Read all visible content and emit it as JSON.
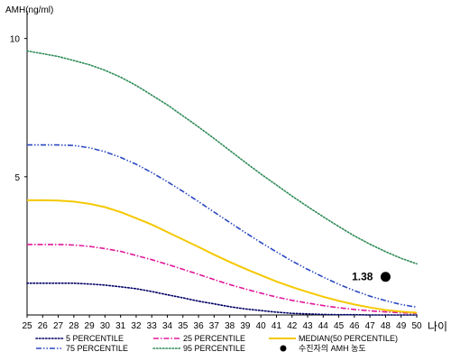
{
  "chart_data": {
    "type": "line",
    "ylabel": "AMH(ng/ml)",
    "xlabel": "나이",
    "xlim": [
      25,
      50
    ],
    "ylim": [
      0,
      11
    ],
    "x_ticks": [
      25,
      26,
      27,
      28,
      29,
      30,
      31,
      32,
      33,
      34,
      35,
      36,
      37,
      38,
      39,
      40,
      41,
      42,
      43,
      44,
      45,
      46,
      47,
      48,
      49,
      50
    ],
    "y_ticks": [
      5,
      10
    ],
    "grid": false,
    "x": [
      25,
      26,
      27,
      28,
      29,
      30,
      31,
      32,
      33,
      34,
      35,
      36,
      37,
      38,
      39,
      40,
      41,
      42,
      43,
      44,
      45,
      46,
      47,
      48,
      49,
      50
    ],
    "series": [
      {
        "name": "5 PERCENTILE",
        "color": "#000066",
        "dash": "dotted",
        "values": [
          1.15,
          1.15,
          1.15,
          1.15,
          1.12,
          1.08,
          1.02,
          0.95,
          0.85,
          0.73,
          0.62,
          0.5,
          0.4,
          0.3,
          0.22,
          0.16,
          0.1,
          0.06,
          0.04,
          0.02,
          0.01,
          0.01,
          0.0,
          0.0,
          0.0,
          0.0
        ]
      },
      {
        "name": "25 PERCENTILE",
        "color": "#e0189a",
        "dash": "dashdot",
        "values": [
          2.55,
          2.55,
          2.55,
          2.53,
          2.48,
          2.4,
          2.3,
          2.15,
          2.0,
          1.83,
          1.65,
          1.47,
          1.28,
          1.1,
          0.94,
          0.79,
          0.65,
          0.53,
          0.43,
          0.34,
          0.26,
          0.2,
          0.15,
          0.11,
          0.08,
          0.06
        ]
      },
      {
        "name": "MEDIAN(50 PERCENTILE)",
        "color": "#f5c800",
        "dash": "solid",
        "values": [
          4.15,
          4.15,
          4.14,
          4.1,
          4.02,
          3.9,
          3.72,
          3.5,
          3.27,
          3.0,
          2.73,
          2.46,
          2.18,
          1.92,
          1.67,
          1.44,
          1.21,
          1.01,
          0.83,
          0.66,
          0.51,
          0.38,
          0.27,
          0.18,
          0.12,
          0.08
        ]
      },
      {
        "name": "75 PERCENTILE",
        "color": "#2b49c2",
        "dash": "dashdotdot",
        "values": [
          6.15,
          6.15,
          6.15,
          6.13,
          6.05,
          5.9,
          5.7,
          5.45,
          5.15,
          4.82,
          4.47,
          4.1,
          3.72,
          3.35,
          2.98,
          2.62,
          2.28,
          1.95,
          1.65,
          1.37,
          1.11,
          0.88,
          0.68,
          0.52,
          0.38,
          0.28
        ]
      },
      {
        "name": "95 PERCENTILE",
        "color": "#2e8b57",
        "dash": "dotted",
        "values": [
          9.55,
          9.45,
          9.35,
          9.2,
          9.05,
          8.85,
          8.6,
          8.3,
          7.95,
          7.6,
          7.2,
          6.8,
          6.38,
          5.95,
          5.52,
          5.1,
          4.7,
          4.3,
          3.92,
          3.55,
          3.2,
          2.86,
          2.56,
          2.29,
          2.05,
          1.85
        ]
      }
    ],
    "marker": {
      "name": "수진자의 AMH 농도",
      "x": 48,
      "y": 1.38,
      "label": "1.38",
      "color": "#000000"
    },
    "legend_position": "bottom"
  }
}
